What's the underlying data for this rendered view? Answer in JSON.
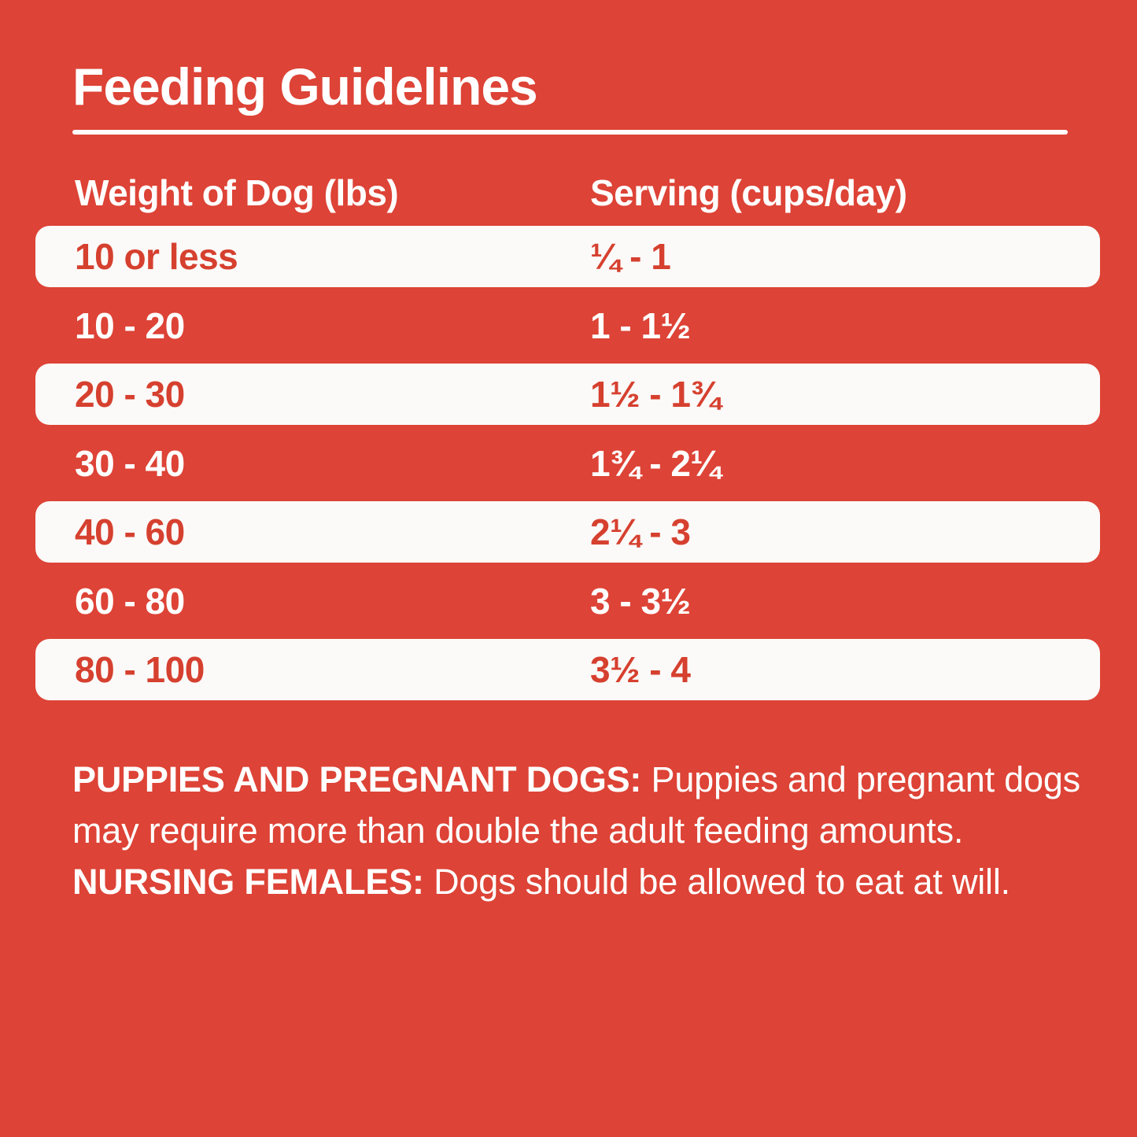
{
  "title": "Feeding Guidelines",
  "colors": {
    "background": "#DD4336",
    "row_highlight": "#FBFAF8",
    "row_text_red": "#D6402F",
    "text_white": "#FFFFFF"
  },
  "table": {
    "columns": [
      "Weight of Dog (lbs)",
      "Serving (cups/day)"
    ],
    "rows": [
      {
        "weight": "10 or less",
        "serving": "¼ - 1"
      },
      {
        "weight": "10 - 20",
        "serving": "1 - 1½"
      },
      {
        "weight": "20 - 30",
        "serving": "1½ - 1¾"
      },
      {
        "weight": "30 - 40",
        "serving": "1¾ - 2¼"
      },
      {
        "weight": "40 - 60",
        "serving": "2¼ - 3"
      },
      {
        "weight": "60 - 80",
        "serving": "3 - 3½"
      },
      {
        "weight": "80 - 100",
        "serving": "3½ - 4"
      }
    ]
  },
  "footnote": {
    "bold1": "PUPPIES AND PREGNANT DOGS:",
    "text1": " Puppies and pregnant dogs may require more than double the adult feeding amounts. ",
    "bold2": "NURSING FEMALES:",
    "text2": " Dogs should be allowed to eat at will."
  }
}
